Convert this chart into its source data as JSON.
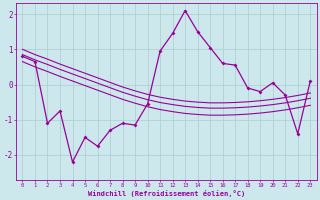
{
  "xlabel": "Windchill (Refroidissement éolien,°C)",
  "x": [
    0,
    1,
    2,
    3,
    4,
    5,
    6,
    7,
    8,
    9,
    10,
    11,
    12,
    13,
    14,
    15,
    16,
    17,
    18,
    19,
    20,
    21,
    22,
    23
  ],
  "windchill": [
    0.8,
    0.65,
    -1.1,
    -0.75,
    -2.2,
    -1.5,
    -1.75,
    -1.3,
    -1.1,
    -1.15,
    -0.55,
    0.95,
    1.45,
    2.1,
    1.5,
    1.05,
    0.6,
    0.55,
    -0.1,
    -0.2,
    0.05,
    -0.3,
    -1.4,
    0.1
  ],
  "line1": [
    1.0,
    0.85,
    0.72,
    0.58,
    0.45,
    0.32,
    0.19,
    0.06,
    -0.07,
    -0.18,
    -0.28,
    -0.36,
    -0.42,
    -0.47,
    -0.5,
    -0.52,
    -0.52,
    -0.51,
    -0.49,
    -0.46,
    -0.42,
    -0.37,
    -0.31,
    -0.24
  ],
  "line2": [
    0.85,
    0.7,
    0.57,
    0.43,
    0.3,
    0.17,
    0.04,
    -0.09,
    -0.22,
    -0.33,
    -0.43,
    -0.51,
    -0.57,
    -0.62,
    -0.65,
    -0.67,
    -0.67,
    -0.66,
    -0.64,
    -0.61,
    -0.57,
    -0.52,
    -0.46,
    -0.39
  ],
  "line3": [
    0.65,
    0.5,
    0.37,
    0.23,
    0.1,
    -0.03,
    -0.16,
    -0.29,
    -0.42,
    -0.53,
    -0.63,
    -0.71,
    -0.77,
    -0.82,
    -0.85,
    -0.87,
    -0.87,
    -0.86,
    -0.84,
    -0.81,
    -0.77,
    -0.72,
    -0.66,
    -0.59
  ],
  "bg_color": "#cce8ec",
  "grid_color": "#aacccc",
  "line_color": "#990099",
  "ylim": [
    -2.7,
    2.3
  ],
  "yticks": [
    -2,
    -1,
    0,
    1,
    2
  ],
  "xticks": [
    0,
    1,
    2,
    3,
    4,
    5,
    6,
    7,
    8,
    9,
    10,
    11,
    12,
    13,
    14,
    15,
    16,
    17,
    18,
    19,
    20,
    21,
    22,
    23
  ]
}
